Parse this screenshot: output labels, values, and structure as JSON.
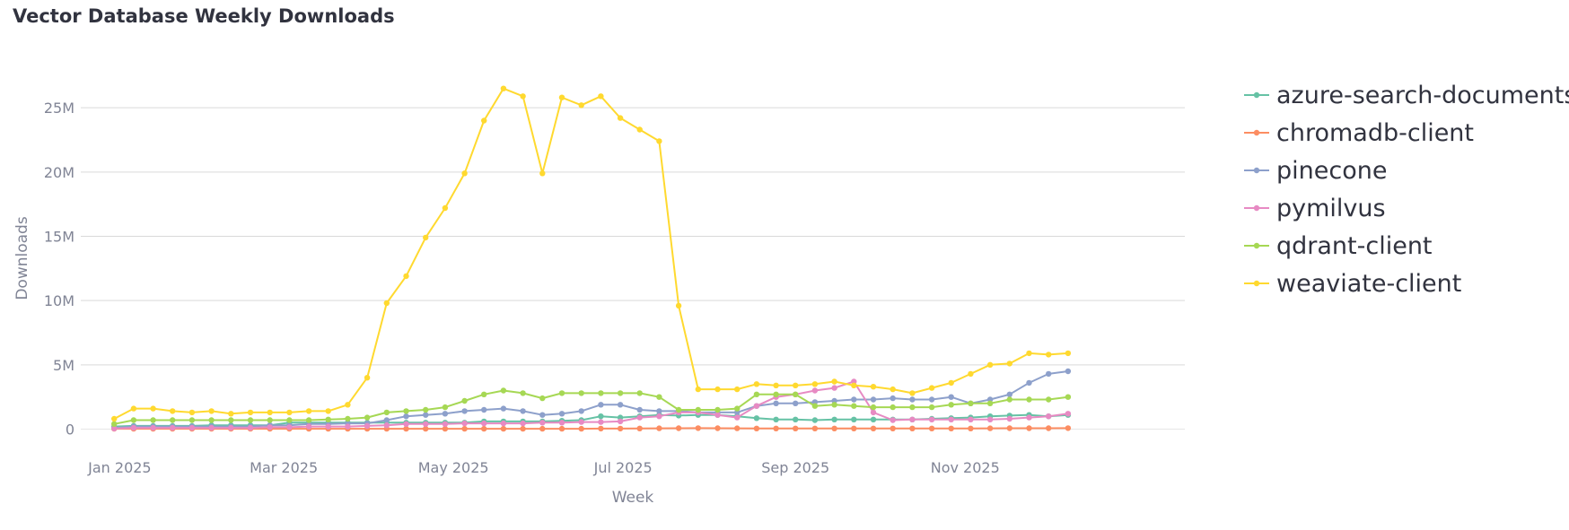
{
  "chart_data": {
    "type": "line",
    "title": "Vector Database Weekly Downloads",
    "xlabel": "Week",
    "ylabel": "Downloads",
    "ylim": [
      -1500000,
      28500000
    ],
    "yticks": [
      0,
      5000000,
      10000000,
      15000000,
      20000000,
      25000000
    ],
    "ytick_labels": [
      "0",
      "5M",
      "10M",
      "15M",
      "20M",
      "25M"
    ],
    "xlim": [
      "2024-12-18",
      "2026-01-19"
    ],
    "xticks": [
      "2025-01-01",
      "2025-03-01",
      "2025-05-01",
      "2025-07-01",
      "2025-09-01",
      "2025-11-01"
    ],
    "xtick_labels": [
      "Jan 2025",
      "Mar 2025",
      "May 2025",
      "Jul 2025",
      "Sep 2025",
      "Nov 2025"
    ],
    "grid": "horizontal",
    "legend_position": "right",
    "x": [
      "2024-12-30",
      "2025-01-06",
      "2025-01-13",
      "2025-01-20",
      "2025-01-27",
      "2025-02-03",
      "2025-02-10",
      "2025-02-17",
      "2025-02-24",
      "2025-03-03",
      "2025-03-10",
      "2025-03-17",
      "2025-03-24",
      "2025-03-31",
      "2025-04-07",
      "2025-04-14",
      "2025-04-21",
      "2025-04-28",
      "2025-05-05",
      "2025-05-12",
      "2025-05-19",
      "2025-05-26",
      "2025-06-02",
      "2025-06-09",
      "2025-06-16",
      "2025-06-23",
      "2025-06-30",
      "2025-07-07",
      "2025-07-14",
      "2025-07-21",
      "2025-07-28",
      "2025-08-04",
      "2025-08-11",
      "2025-08-18",
      "2025-08-25",
      "2025-09-01",
      "2025-09-08",
      "2025-09-15",
      "2025-09-22",
      "2025-09-29",
      "2025-10-06",
      "2025-10-13",
      "2025-10-20",
      "2025-10-27",
      "2025-11-03",
      "2025-11-10",
      "2025-11-17",
      "2025-11-24",
      "2025-12-01",
      "2025-12-08"
    ],
    "series": [
      {
        "name": "azure-search-documents",
        "color": "#66c2a5",
        "values": [
          200000,
          250000,
          250000,
          250000,
          250000,
          300000,
          300000,
          300000,
          300000,
          500000,
          500000,
          500000,
          500000,
          500000,
          500000,
          500000,
          500000,
          500000,
          500000,
          600000,
          600000,
          600000,
          600000,
          650000,
          700000,
          1000000,
          900000,
          1000000,
          1100000,
          1050000,
          1100000,
          1100000,
          1000000,
          850000,
          750000,
          750000,
          700000,
          750000,
          750000,
          750000,
          750000,
          750000,
          800000,
          850000,
          900000,
          1000000,
          1050000,
          1100000,
          1000000,
          1100000
        ]
      },
      {
        "name": "chromadb-client",
        "color": "#fc8d62",
        "values": [
          30000,
          30000,
          30000,
          30000,
          30000,
          30000,
          30000,
          30000,
          30000,
          30000,
          30000,
          30000,
          30000,
          30000,
          30000,
          30000,
          30000,
          30000,
          30000,
          30000,
          30000,
          30000,
          30000,
          30000,
          30000,
          40000,
          40000,
          50000,
          60000,
          70000,
          80000,
          70000,
          60000,
          50000,
          50000,
          50000,
          50000,
          50000,
          50000,
          50000,
          50000,
          50000,
          50000,
          50000,
          50000,
          60000,
          70000,
          70000,
          70000,
          80000
        ]
      },
      {
        "name": "pinecone",
        "color": "#8da0cb",
        "values": [
          100000,
          200000,
          200000,
          200000,
          200000,
          200000,
          200000,
          200000,
          300000,
          300000,
          400000,
          400000,
          450000,
          450000,
          700000,
          1000000,
          1100000,
          1200000,
          1400000,
          1500000,
          1600000,
          1400000,
          1100000,
          1200000,
          1400000,
          1900000,
          1900000,
          1500000,
          1400000,
          1400000,
          1300000,
          1300000,
          1300000,
          1800000,
          2000000,
          2000000,
          2100000,
          2200000,
          2300000,
          2300000,
          2400000,
          2300000,
          2300000,
          2500000,
          2000000,
          2300000,
          2700000,
          3600000,
          4300000,
          4500000
        ]
      },
      {
        "name": "pymilvus",
        "color": "#e78ac3",
        "values": [
          50000,
          100000,
          100000,
          100000,
          100000,
          100000,
          100000,
          100000,
          150000,
          150000,
          200000,
          200000,
          200000,
          250000,
          300000,
          400000,
          400000,
          400000,
          450000,
          450000,
          450000,
          450000,
          500000,
          500000,
          550000,
          550000,
          600000,
          900000,
          1000000,
          1300000,
          1300000,
          1100000,
          900000,
          1800000,
          2500000,
          2700000,
          3000000,
          3200000,
          3700000,
          1300000,
          700000,
          750000,
          750000,
          750000,
          750000,
          750000,
          800000,
          900000,
          1000000,
          1200000
        ]
      },
      {
        "name": "qdrant-client",
        "color": "#a6d854",
        "values": [
          400000,
          700000,
          700000,
          700000,
          700000,
          700000,
          700000,
          700000,
          700000,
          700000,
          700000,
          750000,
          800000,
          900000,
          1300000,
          1400000,
          1500000,
          1700000,
          2200000,
          2700000,
          3000000,
          2800000,
          2400000,
          2800000,
          2800000,
          2800000,
          2800000,
          2800000,
          2500000,
          1500000,
          1500000,
          1500000,
          1600000,
          2700000,
          2700000,
          2700000,
          1800000,
          1900000,
          1800000,
          1700000,
          1700000,
          1700000,
          1700000,
          1900000,
          2000000,
          2000000,
          2300000,
          2300000,
          2300000,
          2500000
        ]
      },
      {
        "name": "weaviate-client",
        "color": "#ffd92f",
        "values": [
          800000,
          1600000,
          1600000,
          1400000,
          1300000,
          1400000,
          1200000,
          1300000,
          1300000,
          1300000,
          1400000,
          1400000,
          1900000,
          4000000,
          9800000,
          11900000,
          14900000,
          17200000,
          19900000,
          24000000,
          26500000,
          25900000,
          19900000,
          25800000,
          25200000,
          25900000,
          24200000,
          23300000,
          22400000,
          9600000,
          3100000,
          3100000,
          3100000,
          3500000,
          3400000,
          3400000,
          3500000,
          3700000,
          3400000,
          3300000,
          3100000,
          2800000,
          3200000,
          3600000,
          4300000,
          5000000,
          5100000,
          5900000,
          5800000,
          5900000
        ]
      }
    ]
  }
}
